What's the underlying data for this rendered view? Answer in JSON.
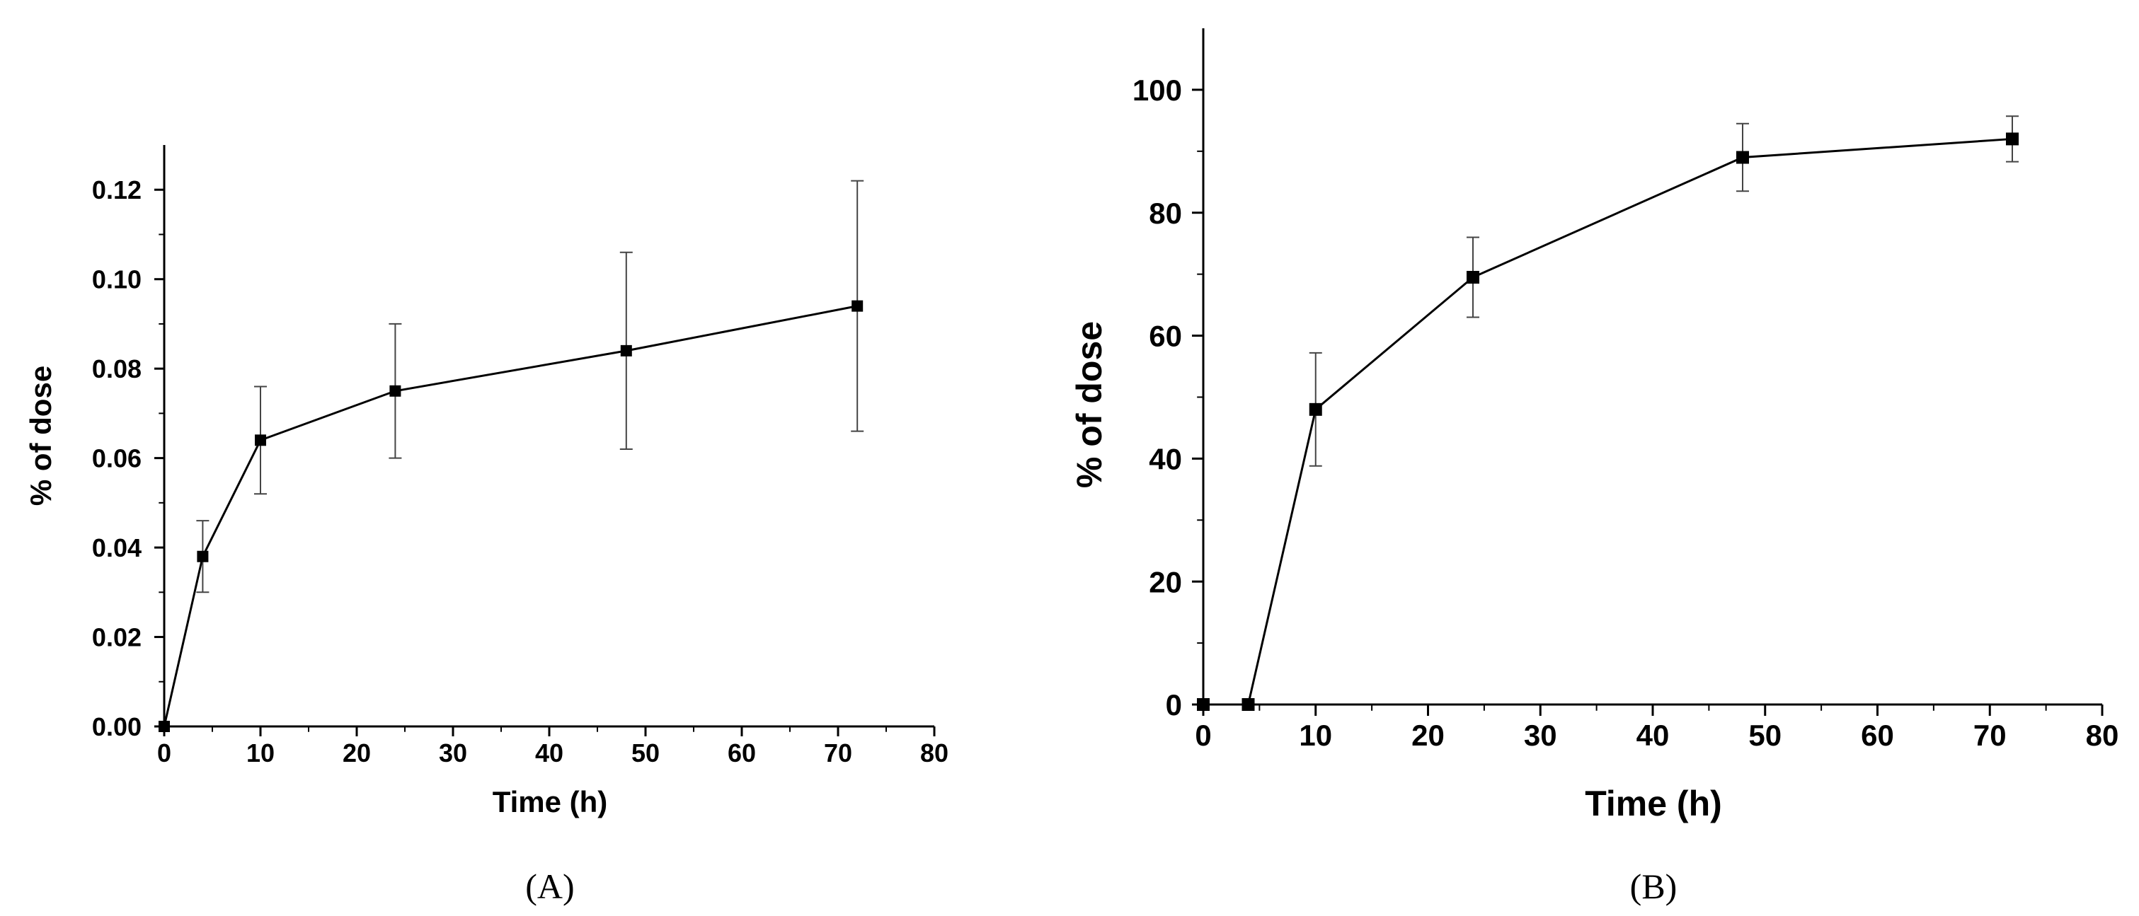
{
  "chart_data": [
    {
      "type": "line",
      "panel_label": "(A)",
      "xlabel": "Time (h)",
      "ylabel": "% of dose",
      "xlim": [
        0,
        80
      ],
      "ylim": [
        0,
        0.13
      ],
      "xticks": [
        0,
        10,
        20,
        30,
        40,
        50,
        60,
        70,
        80
      ],
      "xtick_labels": [
        "0",
        "10",
        "20",
        "30",
        "40",
        "50",
        "60",
        "70",
        "80"
      ],
      "yticks": [
        0,
        0.02,
        0.04,
        0.06,
        0.08,
        0.1,
        0.12
      ],
      "ytick_labels": [
        "0.00",
        "0.02",
        "0.04",
        "0.06",
        "0.08",
        "0.10",
        "0.12"
      ],
      "grid": false,
      "series": [
        {
          "x": [
            0,
            4,
            10,
            24,
            48,
            72
          ],
          "y": [
            0,
            0.038,
            0.064,
            0.075,
            0.084,
            0.094
          ],
          "error": [
            0,
            0.008,
            0.012,
            0.015,
            0.022,
            0.028
          ],
          "marker": "square",
          "color": "#000000"
        }
      ]
    },
    {
      "type": "line",
      "panel_label": "(B)",
      "xlabel": "Time (h)",
      "ylabel": "% of dose",
      "xlim": [
        0,
        80
      ],
      "ylim": [
        0,
        110
      ],
      "xticks": [
        0,
        10,
        20,
        30,
        40,
        50,
        60,
        70,
        80
      ],
      "xtick_labels": [
        "0",
        "10",
        "20",
        "30",
        "40",
        "50",
        "60",
        "70",
        "80"
      ],
      "yticks": [
        0,
        20,
        40,
        60,
        80,
        100
      ],
      "ytick_labels": [
        "0",
        "20",
        "40",
        "60",
        "80",
        "100"
      ],
      "grid": false,
      "series": [
        {
          "x": [
            0,
            4,
            10,
            24,
            48,
            72
          ],
          "y": [
            0,
            0,
            48,
            69.5,
            89,
            92
          ],
          "error": [
            0,
            0,
            9.2,
            6.5,
            5.5,
            3.7
          ],
          "marker": "square",
          "color": "#000000"
        }
      ]
    }
  ]
}
